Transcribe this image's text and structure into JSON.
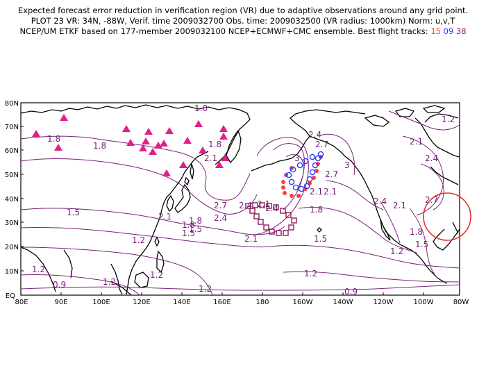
{
  "header": {
    "line1": "Expected forecast error reduction in verification region (VR) due to adaptive observations around any grid point.",
    "line2": "PLOT 23 VR: 34N, -88W, Verif. time 2009032700 Obs. time: 2009032500 (VR radius: 1000km) Norm: u,v,T",
    "line3_prefix": "NCEP/UM ETKF based on 177-member 2009032100 NCEP+ECMWF+CMC ensemble. Best flight tracks:",
    "track_a": "15",
    "track_b": "09",
    "track_c": "38"
  },
  "map": {
    "lat_labels": [
      "80N",
      "70N",
      "60N",
      "50N",
      "40N",
      "30N",
      "20N",
      "10N",
      "EQ"
    ],
    "lon_labels": [
      "80E",
      "90E",
      "100E",
      "120E",
      "140E",
      "160E",
      "180",
      "160W",
      "140W",
      "120W",
      "100W",
      "80W"
    ],
    "contour_labels": [
      "1.8",
      "1.8",
      "1.8",
      "1.8",
      "2.1",
      "2.4",
      "2.7",
      "3",
      "2.7",
      "2.1",
      "2.1",
      "2.1",
      "2.4",
      "2.7",
      "1.5",
      "2.1",
      "2.4",
      "2.7",
      "1.8",
      "1.5",
      "2.4",
      "1.8",
      "1.5",
      "1.2",
      "2.4",
      "1.8",
      "2.1",
      "1.5",
      "2.1",
      "1.8",
      "1.2",
      "1.5",
      "1.2",
      "1.2",
      "1.2",
      "1.2",
      "1.2",
      "0.9",
      "0.9",
      "1.2",
      "3",
      "2.1",
      "2.4"
    ],
    "colors": {
      "contour": "#7a1f7a",
      "raob": "#e0208a",
      "track15": "#ff3b3b",
      "track09": "#2a3cff",
      "track38": "#8b1a5a",
      "vr_circle": "#e8302a"
    }
  }
}
